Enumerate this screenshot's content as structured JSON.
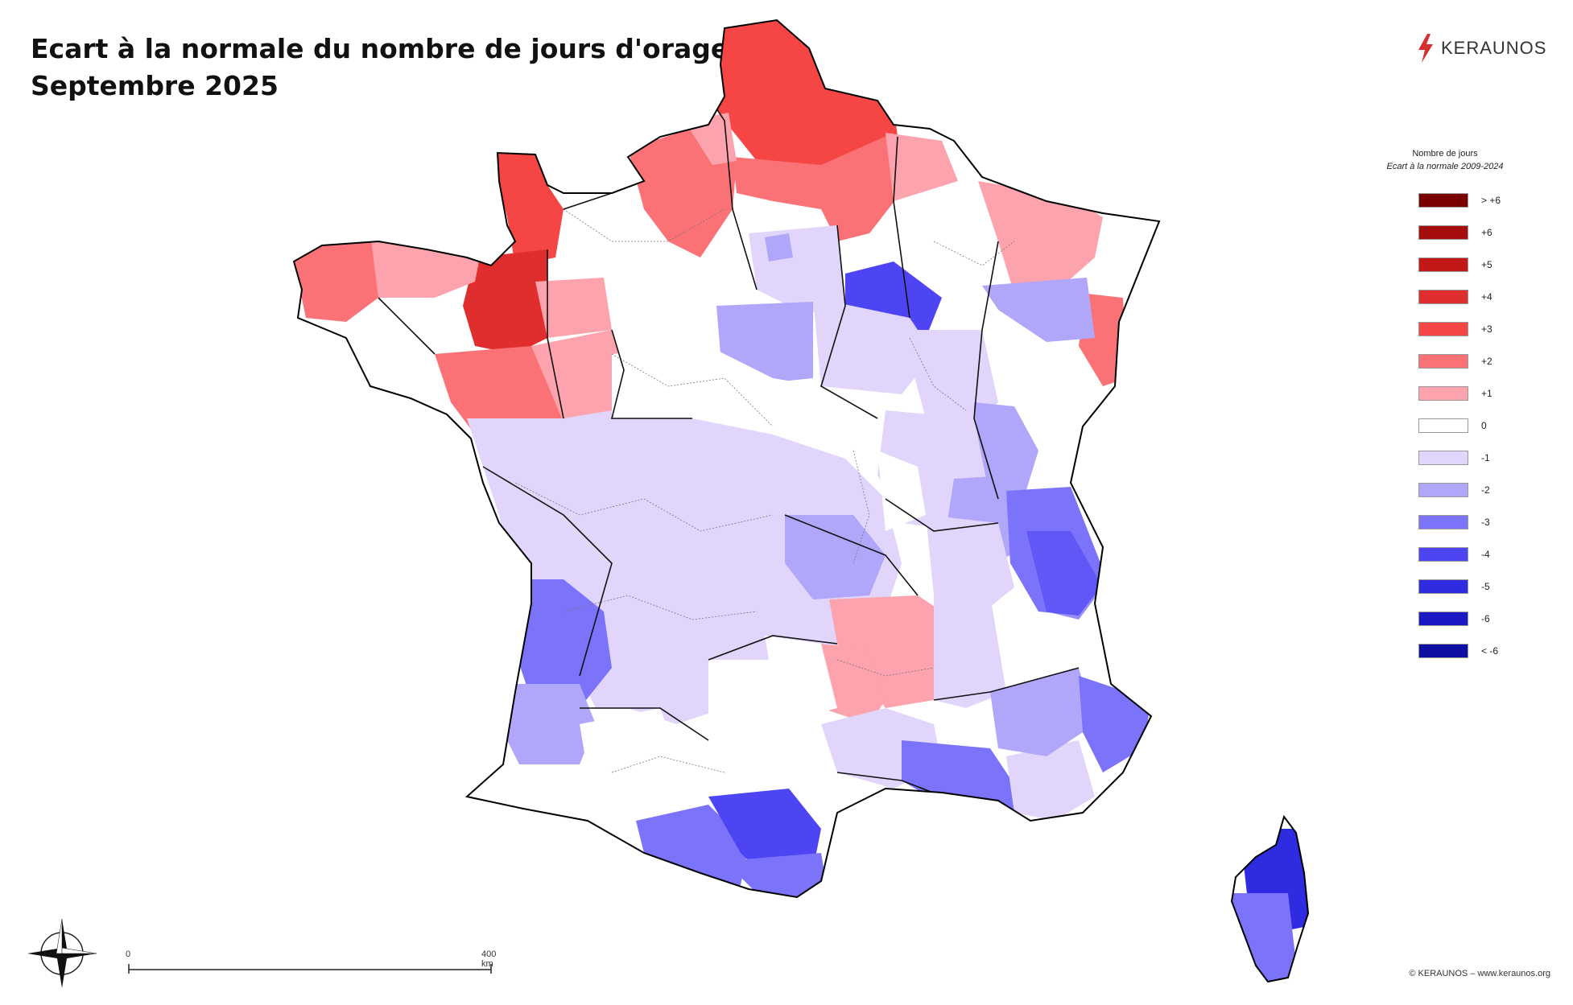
{
  "title": {
    "line1": "Ecart à la normale du nombre de jours d'orage",
    "line2": "Septembre 2025"
  },
  "logo": {
    "text": "KERAUNOS",
    "icon": "lightning-bolt-icon",
    "color": "#d62f2f"
  },
  "legend": {
    "title": "Nombre de jours",
    "subtitle": "Ecart à la normale 2009-2024",
    "items": [
      {
        "label": "> +6",
        "color": "#7a0000"
      },
      {
        "label": "+6",
        "color": "#a60d0d"
      },
      {
        "label": "+5",
        "color": "#c41818"
      },
      {
        "label": "+4",
        "color": "#e02e2e"
      },
      {
        "label": "+3",
        "color": "#f54545"
      },
      {
        "label": "+2",
        "color": "#fb7276"
      },
      {
        "label": "+1",
        "color": "#fca3ad"
      },
      {
        "label": "0",
        "color": "#ffffff"
      },
      {
        "label": "-1",
        "color": "#e2d5fb"
      },
      {
        "label": "-2",
        "color": "#b0a6fa"
      },
      {
        "label": "-3",
        "color": "#7b74fa"
      },
      {
        "label": "-4",
        "color": "#4d45f3"
      },
      {
        "label": "-5",
        "color": "#2f2be0"
      },
      {
        "label": "-6",
        "color": "#1c19c4"
      },
      {
        "label": "< -6",
        "color": "#0f0ea3"
      }
    ]
  },
  "scale_bar": {
    "start_label": "0",
    "end_label": "400 km"
  },
  "compass": {
    "icon": "compass-rose-icon"
  },
  "copyright": "© KERAUNOS – www.keraunos.org"
}
